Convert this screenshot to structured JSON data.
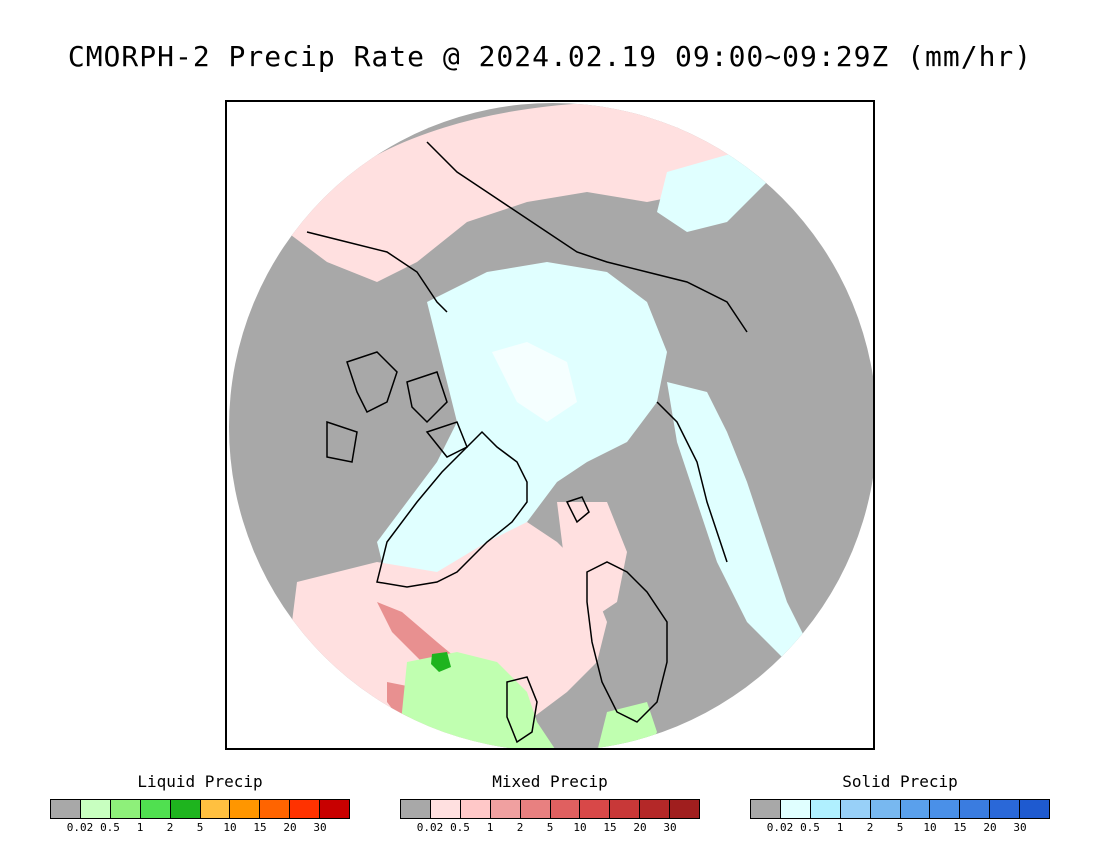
{
  "title": "CMORPH-2 Precip Rate @ 2024.02.19 09:00~09:29Z (mm/hr)",
  "map": {
    "projection": "north-polar-stereographic",
    "colors": {
      "no_precip": "#a8a8a8",
      "mixed_light": "#ffe0e0",
      "solid_light": "#e0ffff",
      "solid_very_light": "#f5ffff",
      "liquid_light": "#c0ffb0",
      "liquid_dark": "#1eb41e",
      "mixed_moderate": "#e89090",
      "coastline": "#000000"
    }
  },
  "legends": [
    {
      "title": "Liquid Precip",
      "colors": [
        "#a8a8a8",
        "#c8ffc0",
        "#8ef07a",
        "#50e050",
        "#1eb41e",
        "#ffc040",
        "#ff9600",
        "#ff6400",
        "#ff3200",
        "#c80000"
      ],
      "ticks": [
        "0.02",
        "0.5",
        "1",
        "2",
        "5",
        "10",
        "15",
        "20",
        "30"
      ]
    },
    {
      "title": "Mixed Precip",
      "colors": [
        "#a8a8a8",
        "#ffe0e0",
        "#ffc8c8",
        "#f0a0a0",
        "#e88080",
        "#e06060",
        "#d84848",
        "#c83838",
        "#b42828",
        "#a01e1e"
      ],
      "ticks": [
        "0.02",
        "0.5",
        "1",
        "2",
        "5",
        "10",
        "15",
        "20",
        "30"
      ]
    },
    {
      "title": "Solid Precip",
      "colors": [
        "#a8a8a8",
        "#e0ffff",
        "#b0f0ff",
        "#98d0f8",
        "#78b8f0",
        "#5aa0ec",
        "#4a90e8",
        "#3a7ce0",
        "#2a68d8",
        "#1e5ad0"
      ],
      "ticks": [
        "0.02",
        "0.5",
        "1",
        "2",
        "5",
        "10",
        "15",
        "20",
        "30"
      ]
    }
  ]
}
